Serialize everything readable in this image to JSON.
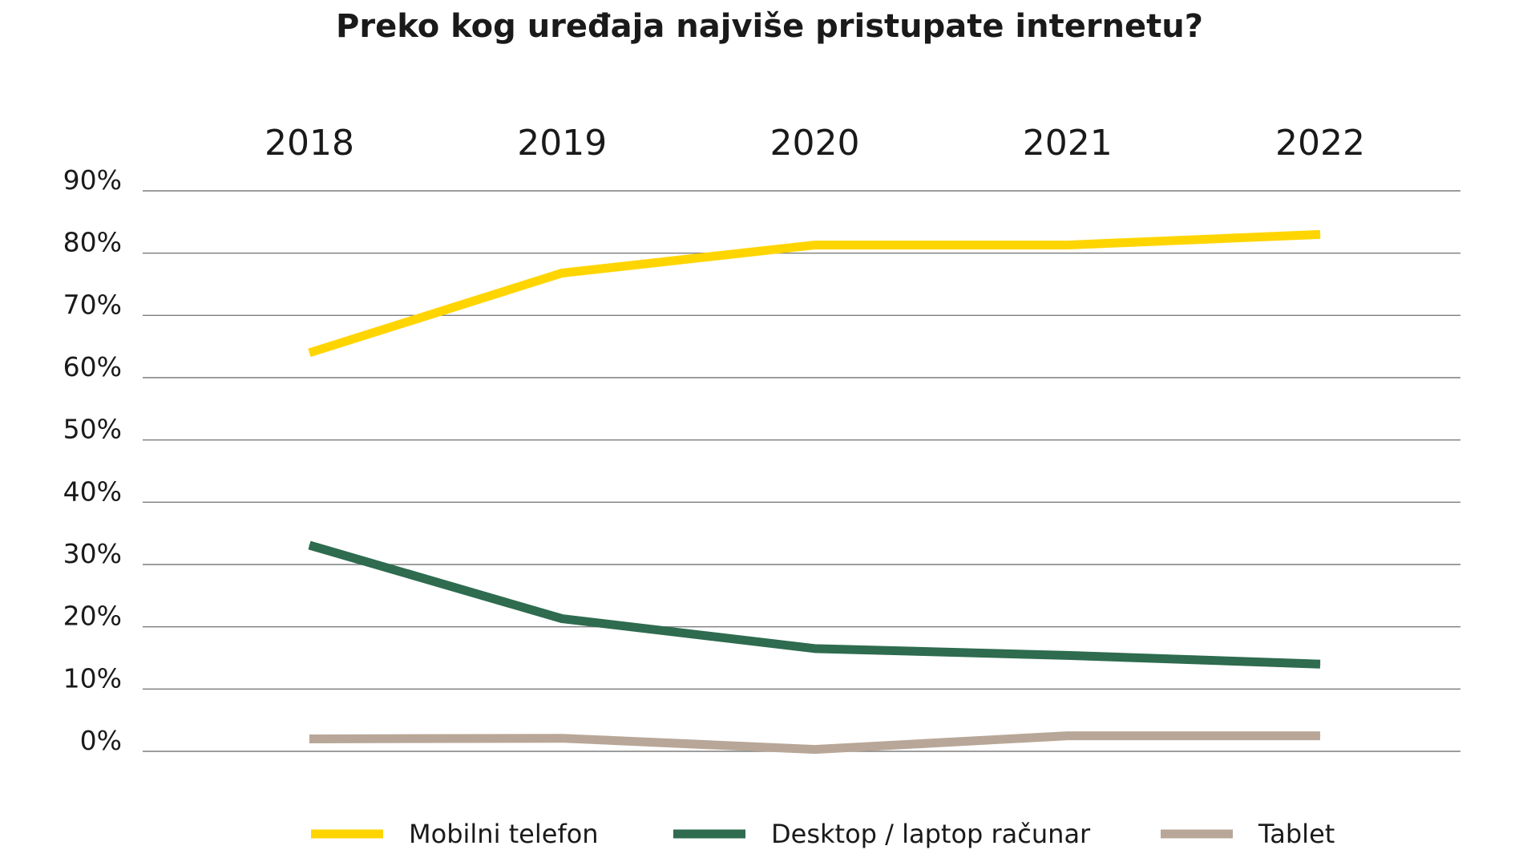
{
  "chart_data": {
    "type": "line",
    "title": "Preko kog uređaja najviše pristupate internetu?",
    "categories": [
      "2018",
      "2019",
      "2020",
      "2021",
      "2022"
    ],
    "y_tick_labels": [
      "0%",
      "10%",
      "20%",
      "30%",
      "40%",
      "50%",
      "60%",
      "70%",
      "80%",
      "90%"
    ],
    "ylim": [
      0,
      90
    ],
    "grid": true,
    "legend_position": "bottom",
    "series": [
      {
        "name": "Mobilni telefon",
        "color": "#FFD500",
        "values": [
          64,
          76.8,
          81.3,
          81.3,
          83
        ]
      },
      {
        "name": "Desktop / laptop računar",
        "color": "#2E6B4F",
        "values": [
          33.1,
          21.3,
          16.5,
          15.4,
          14
        ]
      },
      {
        "name": "Tablet",
        "color": "#B8A798",
        "values": [
          2,
          2.1,
          0.3,
          2.5,
          2.5
        ]
      }
    ]
  }
}
